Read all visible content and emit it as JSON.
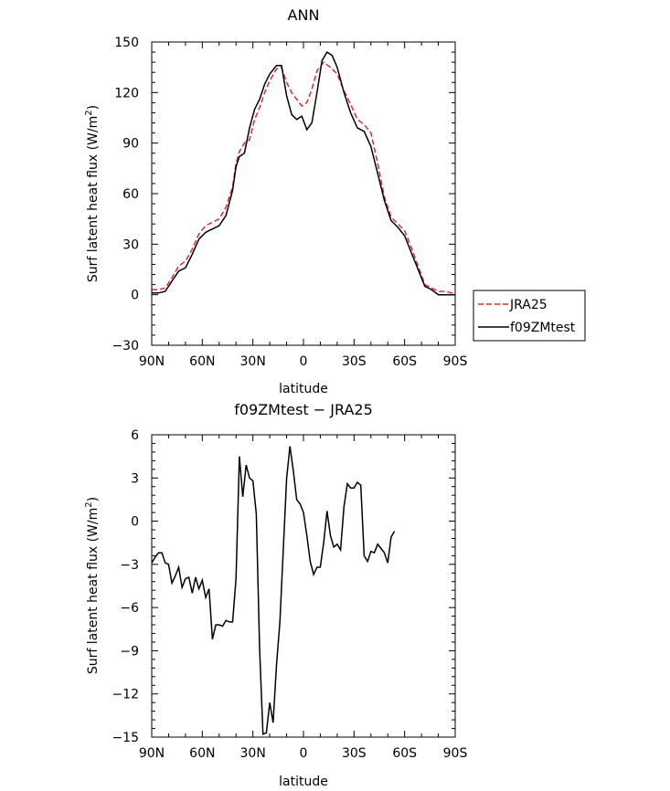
{
  "chart_data": [
    {
      "type": "line",
      "title": "ANN",
      "xlabel": "latitude",
      "ylabel": "Surf latent heat flux (W/m²)",
      "ylabel_main": "Surf latent heat flux (W/m",
      "ylabel_sup": "2",
      "ylabel_tail": ")",
      "xlim": [
        90,
        -90
      ],
      "ylim": [
        -30,
        150
      ],
      "xticks": [
        90,
        60,
        30,
        0,
        -30,
        -60,
        -90
      ],
      "xtick_labels": [
        "90N",
        "60N",
        "30N",
        "0",
        "30S",
        "60S",
        "90S"
      ],
      "yticks": [
        -30,
        0,
        30,
        60,
        90,
        120,
        150
      ],
      "ytick_labels": [
        "−30",
        "0",
        "30",
        "60",
        "90",
        "120",
        "150"
      ],
      "legend": {
        "placement": "outside-right",
        "entries": [
          "JRA25",
          "f09ZMtest"
        ]
      },
      "series": [
        {
          "name": "JRA25",
          "color": "#e8262a",
          "dash": "dashed",
          "points": [
            [
              90,
              3
            ],
            [
              86,
              3
            ],
            [
              82,
              4
            ],
            [
              78,
              10
            ],
            [
              74,
              17
            ],
            [
              70,
              20
            ],
            [
              66,
              27
            ],
            [
              62,
              36
            ],
            [
              58,
              41
            ],
            [
              54,
              43
            ],
            [
              50,
              45
            ],
            [
              46,
              52
            ],
            [
              42,
              64
            ],
            [
              40,
              78
            ],
            [
              38,
              85
            ],
            [
              35,
              90
            ],
            [
              32,
              92
            ],
            [
              29,
              104
            ],
            [
              26,
              111
            ],
            [
              23,
              120
            ],
            [
              20,
              127
            ],
            [
              16,
              134
            ],
            [
              13,
              135
            ],
            [
              10,
              126
            ],
            [
              7,
              120
            ],
            [
              4,
              116
            ],
            [
              1,
              112
            ],
            [
              -2,
              114
            ],
            [
              -5,
              122
            ],
            [
              -8,
              133
            ],
            [
              -12,
              138
            ],
            [
              -16,
              135
            ],
            [
              -20,
              131
            ],
            [
              -24,
              121
            ],
            [
              -28,
              113
            ],
            [
              -32,
              104
            ],
            [
              -36,
              101
            ],
            [
              -40,
              96
            ],
            [
              -44,
              78
            ],
            [
              -48,
              58
            ],
            [
              -52,
              46
            ],
            [
              -56,
              42
            ],
            [
              -60,
              38
            ],
            [
              -64,
              28
            ],
            [
              -68,
              17
            ],
            [
              -72,
              6
            ],
            [
              -76,
              4
            ],
            [
              -80,
              2
            ],
            [
              -84,
              2
            ],
            [
              -88,
              1
            ],
            [
              -90,
              1
            ]
          ]
        },
        {
          "name": "f09ZMtest",
          "color": "#000000",
          "dash": "solid",
          "points": [
            [
              90,
              1
            ],
            [
              86,
              1
            ],
            [
              82,
              2
            ],
            [
              78,
              8
            ],
            [
              74,
              14
            ],
            [
              70,
              16
            ],
            [
              66,
              24
            ],
            [
              62,
              33
            ],
            [
              58,
              37
            ],
            [
              54,
              39
            ],
            [
              50,
              41
            ],
            [
              46,
              47
            ],
            [
              42,
              62
            ],
            [
              40,
              76
            ],
            [
              38,
              82
            ],
            [
              35,
              84
            ],
            [
              32,
              99
            ],
            [
              29,
              110
            ],
            [
              26,
              116
            ],
            [
              23,
              125
            ],
            [
              20,
              131
            ],
            [
              16,
              136
            ],
            [
              13,
              136
            ],
            [
              10,
              118
            ],
            [
              7,
              107
            ],
            [
              4,
              104
            ],
            [
              1,
              106
            ],
            [
              -2,
              98
            ],
            [
              -5,
              102
            ],
            [
              -8,
              120
            ],
            [
              -11,
              139
            ],
            [
              -14,
              144
            ],
            [
              -17,
              142
            ],
            [
              -20,
              135
            ],
            [
              -24,
              120
            ],
            [
              -28,
              108
            ],
            [
              -32,
              99
            ],
            [
              -36,
              97
            ],
            [
              -40,
              88
            ],
            [
              -44,
              72
            ],
            [
              -48,
              56
            ],
            [
              -52,
              44
            ],
            [
              -56,
              40
            ],
            [
              -60,
              35
            ],
            [
              -64,
              25
            ],
            [
              -68,
              15
            ],
            [
              -72,
              5
            ],
            [
              -76,
              3
            ],
            [
              -80,
              0
            ],
            [
              -84,
              0
            ],
            [
              -88,
              0
            ],
            [
              -90,
              0
            ]
          ]
        }
      ]
    },
    {
      "type": "line",
      "title": "f09ZMtest − JRA25",
      "xlabel": "latitude",
      "ylabel": "Surf latent heat flux (W/m²)",
      "ylabel_main": "Surf latent heat flux (W/m",
      "ylabel_sup": "2",
      "ylabel_tail": ")",
      "xlim": [
        90,
        -90
      ],
      "ylim": [
        -15,
        6
      ],
      "xticks": [
        90,
        60,
        30,
        0,
        -30,
        -60,
        -90
      ],
      "xtick_labels": [
        "90N",
        "60N",
        "30N",
        "0",
        "30S",
        "60S",
        "90S"
      ],
      "yticks": [
        -15,
        -12,
        -9,
        -6,
        -3,
        0,
        3,
        6
      ],
      "ytick_labels": [
        "−15",
        "−12",
        "−9",
        "−6",
        "−3",
        "0",
        "3",
        "6"
      ],
      "series": [
        {
          "color": "#000000",
          "dash": "solid",
          "points": [
            [
              90,
              -2.9
            ],
            [
              88,
              -2.5
            ],
            [
              86,
              -2.2
            ],
            [
              84,
              -2.2
            ],
            [
              82,
              -2.9
            ],
            [
              80,
              -3.0
            ],
            [
              78,
              -4.3
            ],
            [
              76,
              -3.8
            ],
            [
              74,
              -3.2
            ],
            [
              72,
              -4.6
            ],
            [
              70,
              -4.0
            ],
            [
              68,
              -3.9
            ],
            [
              66,
              -5.0
            ],
            [
              64,
              -3.9
            ],
            [
              62,
              -4.7
            ],
            [
              60,
              -4.1
            ],
            [
              58,
              -5.3
            ],
            [
              56,
              -4.7
            ],
            [
              54,
              -8.2
            ],
            [
              52,
              -7.2
            ],
            [
              50,
              -7.2
            ],
            [
              48,
              -7.3
            ],
            [
              46,
              -6.9
            ],
            [
              44,
              -7.0
            ],
            [
              42,
              -7.0
            ],
            [
              40,
              -4.0
            ],
            [
              38,
              4.5
            ],
            [
              36,
              1.7
            ],
            [
              34,
              3.9
            ],
            [
              32,
              3.0
            ],
            [
              30,
              2.8
            ],
            [
              28,
              0.5
            ],
            [
              26,
              -8.8
            ],
            [
              24,
              -14.8
            ],
            [
              22,
              -14.7
            ],
            [
              20,
              -12.6
            ],
            [
              18,
              -14.0
            ],
            [
              16,
              -10.0
            ],
            [
              14,
              -7.0
            ],
            [
              12,
              -2.0
            ],
            [
              10,
              3.0
            ],
            [
              8,
              5.2
            ],
            [
              6,
              3.5
            ],
            [
              4,
              1.5
            ],
            [
              2,
              1.2
            ],
            [
              0,
              0.6
            ],
            [
              -2,
              -1.0
            ],
            [
              -4,
              -2.8
            ],
            [
              -6,
              -3.7
            ],
            [
              -8,
              -3.2
            ],
            [
              -10,
              -3.2
            ],
            [
              -12,
              -1.5
            ],
            [
              -14,
              0.7
            ],
            [
              -16,
              -1.0
            ],
            [
              -18,
              -1.8
            ],
            [
              -20,
              -1.6
            ],
            [
              -22,
              -2.0
            ],
            [
              -24,
              1.0
            ],
            [
              -26,
              2.6
            ],
            [
              -28,
              2.3
            ],
            [
              -30,
              2.3
            ],
            [
              -32,
              2.7
            ],
            [
              -34,
              2.5
            ],
            [
              -36,
              -2.4
            ],
            [
              -38,
              -2.8
            ],
            [
              -40,
              -2.1
            ],
            [
              -42,
              -2.2
            ],
            [
              -44,
              -1.6
            ],
            [
              -46,
              -1.9
            ],
            [
              -48,
              -2.2
            ],
            [
              -50,
              -2.9
            ],
            [
              -52,
              -1.1
            ],
            [
              -54,
              -0.7
            ]
          ]
        }
      ]
    }
  ]
}
